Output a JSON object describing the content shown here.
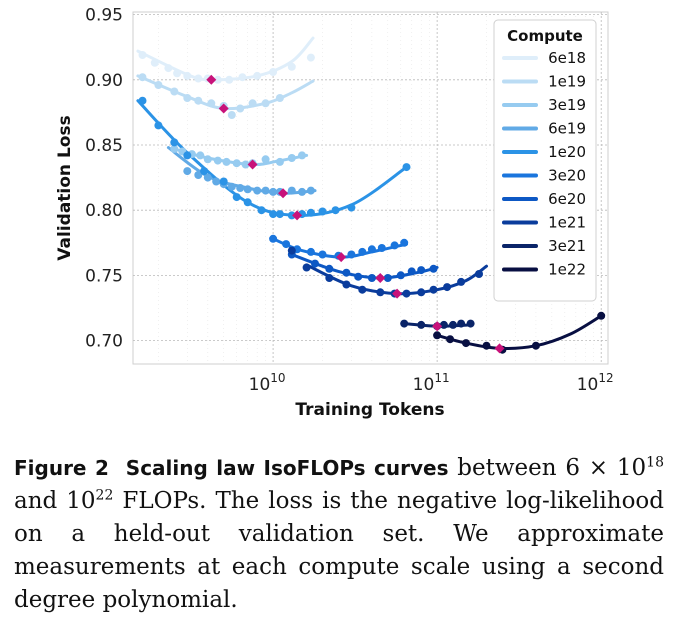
{
  "chart_data": {
    "type": "line",
    "x_scale": "log",
    "xlim": [
      1400000000.0,
      1100000000000.0
    ],
    "ylim": [
      0.682,
      0.952
    ],
    "xlabel": "Training Tokens",
    "ylabel": "Validation Loss",
    "x_ticks": [
      {
        "value": 10000000000.0,
        "base": "10",
        "exp": "10"
      },
      {
        "value": 100000000000.0,
        "base": "10",
        "exp": "11"
      },
      {
        "value": 1000000000000.0,
        "base": "10",
        "exp": "12"
      }
    ],
    "y_ticks": [
      "0.70",
      "0.75",
      "0.80",
      "0.85",
      "0.90",
      "0.95"
    ],
    "y_tick_values": [
      0.7,
      0.75,
      0.8,
      0.85,
      0.9,
      0.95
    ],
    "grid": true,
    "legend": {
      "title": "Compute",
      "position": "top-right"
    },
    "minimum_marker_color": "#c8127a",
    "series": [
      {
        "name": "6e18",
        "color": "#dfeefa",
        "points": [
          [
            1600000000.0,
            0.919
          ],
          [
            1900000000.0,
            0.913
          ],
          [
            2300000000.0,
            0.909
          ],
          [
            2600000000.0,
            0.905
          ],
          [
            3000000000.0,
            0.903
          ],
          [
            3500000000.0,
            0.901
          ],
          [
            4000000000.0,
            0.901
          ],
          [
            4600000000.0,
            0.9
          ],
          [
            5400000000.0,
            0.9
          ],
          [
            6500000000.0,
            0.902
          ],
          [
            8000000000.0,
            0.903
          ],
          [
            10000000000.0,
            0.906
          ],
          [
            13000000000.0,
            0.91
          ],
          [
            17000000000.0,
            0.917
          ]
        ],
        "fit": [
          [
            1500000000.0,
            0.922
          ],
          [
            3000000000.0,
            0.904
          ],
          [
            4200000000.0,
            0.9
          ],
          [
            8000000000.0,
            0.903
          ],
          [
            13000000000.0,
            0.914
          ],
          [
            17500000000.0,
            0.932
          ]
        ],
        "min": [
          4200000000.0,
          0.9
        ]
      },
      {
        "name": "1e19",
        "color": "#bbdcf4",
        "points": [
          [
            1600000000.0,
            0.902
          ],
          [
            2000000000.0,
            0.896
          ],
          [
            2500000000.0,
            0.891
          ],
          [
            3000000000.0,
            0.886
          ],
          [
            3500000000.0,
            0.884
          ],
          [
            4200000000.0,
            0.882
          ],
          [
            5000000000.0,
            0.88
          ],
          [
            5600000000.0,
            0.873
          ],
          [
            6300000000.0,
            0.878
          ],
          [
            7500000000.0,
            0.882
          ],
          [
            9000000000.0,
            0.882
          ],
          [
            11000000000.0,
            0.886
          ]
        ],
        "fit": [
          [
            1500000000.0,
            0.903
          ],
          [
            3000000000.0,
            0.887
          ],
          [
            5000000000.0,
            0.878
          ],
          [
            9000000000.0,
            0.882
          ],
          [
            13000000000.0,
            0.89
          ],
          [
            17500000000.0,
            0.899
          ]
        ],
        "min": [
          5000000000.0,
          0.878
        ]
      },
      {
        "name": "3e19",
        "color": "#96cbf0",
        "points": [
          [
            2500000000.0,
            0.847
          ],
          [
            2800000000.0,
            0.845
          ],
          [
            3200000000.0,
            0.843
          ],
          [
            3600000000.0,
            0.842
          ],
          [
            4000000000.0,
            0.839
          ],
          [
            4600000000.0,
            0.838
          ],
          [
            5200000000.0,
            0.837
          ],
          [
            6000000000.0,
            0.836
          ],
          [
            6800000000.0,
            0.835
          ],
          [
            7500000000.0,
            0.836
          ],
          [
            9000000000.0,
            0.839
          ],
          [
            11000000000.0,
            0.837
          ],
          [
            13000000000.0,
            0.84
          ],
          [
            15000000000.0,
            0.842
          ]
        ],
        "fit": [
          [
            2500000000.0,
            0.847
          ],
          [
            4000000000.0,
            0.84
          ],
          [
            7500000000.0,
            0.835
          ],
          [
            11000000000.0,
            0.838
          ],
          [
            16000000000.0,
            0.842
          ]
        ],
        "min": [
          7500000000.0,
          0.835
        ]
      },
      {
        "name": "6e19",
        "color": "#61aae6",
        "points": [
          [
            3000000000.0,
            0.83
          ],
          [
            3500000000.0,
            0.827
          ],
          [
            4000000000.0,
            0.825
          ],
          [
            4500000000.0,
            0.822
          ],
          [
            5000000000.0,
            0.82
          ],
          [
            5600000000.0,
            0.818
          ],
          [
            6300000000.0,
            0.817
          ],
          [
            7000000000.0,
            0.816
          ],
          [
            8000000000.0,
            0.815
          ],
          [
            9000000000.0,
            0.815
          ],
          [
            10000000000.0,
            0.814
          ],
          [
            11000000000.0,
            0.814
          ],
          [
            13000000000.0,
            0.815
          ],
          [
            15000000000.0,
            0.814
          ],
          [
            17000000000.0,
            0.815
          ]
        ],
        "fit": [
          [
            2300000000.0,
            0.848
          ],
          [
            4000000000.0,
            0.826
          ],
          [
            7000000000.0,
            0.817
          ],
          [
            11500000000.0,
            0.813
          ],
          [
            18000000000.0,
            0.815
          ]
        ],
        "min": [
          11500000000.0,
          0.813
        ]
      },
      {
        "name": "1e20",
        "color": "#2b93e6",
        "points": [
          [
            1600000000.0,
            0.884
          ],
          [
            2000000000.0,
            0.865
          ],
          [
            2500000000.0,
            0.852
          ],
          [
            3000000000.0,
            0.842
          ],
          [
            3800000000.0,
            0.83
          ],
          [
            5000000000.0,
            0.822
          ],
          [
            6000000000.0,
            0.81
          ],
          [
            7000000000.0,
            0.806
          ],
          [
            8500000000.0,
            0.8
          ],
          [
            10000000000.0,
            0.797
          ],
          [
            11000000000.0,
            0.797
          ],
          [
            13000000000.0,
            0.796
          ],
          [
            15000000000.0,
            0.797
          ],
          [
            17000000000.0,
            0.798
          ],
          [
            20000000000.0,
            0.799
          ],
          [
            24000000000.0,
            0.8
          ],
          [
            30000000000.0,
            0.802
          ],
          [
            65000000000.0,
            0.833
          ]
        ],
        "fit": [
          [
            1500000000.0,
            0.884
          ],
          [
            3000000000.0,
            0.844
          ],
          [
            7000000000.0,
            0.806
          ],
          [
            14000000000.0,
            0.796
          ],
          [
            30000000000.0,
            0.804
          ],
          [
            65000000000.0,
            0.833
          ]
        ],
        "min": [
          14000000000.0,
          0.796
        ]
      },
      {
        "name": "3e20",
        "color": "#1a75dd",
        "points": [
          [
            10000000000.0,
            0.778
          ],
          [
            12000000000.0,
            0.774
          ],
          [
            14000000000.0,
            0.77
          ],
          [
            17000000000.0,
            0.768
          ],
          [
            20000000000.0,
            0.766
          ],
          [
            25000000000.0,
            0.765
          ],
          [
            30000000000.0,
            0.766
          ],
          [
            35000000000.0,
            0.768
          ],
          [
            40000000000.0,
            0.77
          ],
          [
            46000000000.0,
            0.771
          ],
          [
            55000000000.0,
            0.773
          ],
          [
            63000000000.0,
            0.775
          ]
        ],
        "fit": [
          [
            10000000000.0,
            0.778
          ],
          [
            15000000000.0,
            0.769
          ],
          [
            26000000000.0,
            0.764
          ],
          [
            40000000000.0,
            0.768
          ],
          [
            65000000000.0,
            0.774
          ]
        ],
        "min": [
          26000000000.0,
          0.764
        ]
      },
      {
        "name": "6e20",
        "color": "#0d58c4",
        "points": [
          [
            13000000000.0,
            0.766
          ],
          [
            18000000000.0,
            0.759
          ],
          [
            22000000000.0,
            0.755
          ],
          [
            28000000000.0,
            0.752
          ],
          [
            33000000000.0,
            0.749
          ],
          [
            40000000000.0,
            0.748
          ],
          [
            50000000000.0,
            0.748
          ],
          [
            60000000000.0,
            0.75
          ],
          [
            70000000000.0,
            0.753
          ],
          [
            80000000000.0,
            0.754
          ],
          [
            95000000000.0,
            0.755
          ]
        ],
        "fit": [
          [
            13000000000.0,
            0.766
          ],
          [
            25000000000.0,
            0.753
          ],
          [
            45000000000.0,
            0.748
          ],
          [
            75000000000.0,
            0.752
          ],
          [
            100000000000.0,
            0.756
          ]
        ],
        "min": [
          45000000000.0,
          0.748
        ]
      },
      {
        "name": "1e21",
        "color": "#0a3c9c",
        "points": [
          [
            13000000000.0,
            0.769
          ],
          [
            16000000000.0,
            0.756
          ],
          [
            22000000000.0,
            0.748
          ],
          [
            28000000000.0,
            0.743
          ],
          [
            35000000000.0,
            0.739
          ],
          [
            45000000000.0,
            0.737
          ],
          [
            55000000000.0,
            0.736
          ],
          [
            65000000000.0,
            0.736
          ],
          [
            80000000000.0,
            0.737
          ],
          [
            95000000000.0,
            0.739
          ],
          [
            115000000000.0,
            0.741
          ],
          [
            140000000000.0,
            0.745
          ],
          [
            180000000000.0,
            0.751
          ]
        ],
        "fit": [
          [
            16000000000.0,
            0.758
          ],
          [
            30000000000.0,
            0.742
          ],
          [
            57000000000.0,
            0.736
          ],
          [
            100000000000.0,
            0.739
          ],
          [
            150000000000.0,
            0.746
          ],
          [
            200000000000.0,
            0.757
          ]
        ],
        "min": [
          57000000000.0,
          0.736
        ]
      },
      {
        "name": "3e21",
        "color": "#0a2468",
        "points": [
          [
            63000000000.0,
            0.713
          ],
          [
            80000000000.0,
            0.712
          ],
          [
            100000000000.0,
            0.711
          ],
          [
            110000000000.0,
            0.712
          ],
          [
            125000000000.0,
            0.712
          ],
          [
            140000000000.0,
            0.713
          ],
          [
            160000000000.0,
            0.713
          ]
        ],
        "fit": [
          [
            63000000000.0,
            0.713
          ],
          [
            100000000000.0,
            0.711
          ],
          [
            160000000000.0,
            0.712
          ]
        ],
        "min": [
          100000000000.0,
          0.711
        ]
      },
      {
        "name": "1e22",
        "color": "#080f42",
        "points": [
          [
            100000000000.0,
            0.704
          ],
          [
            120000000000.0,
            0.701
          ],
          [
            150000000000.0,
            0.698
          ],
          [
            200000000000.0,
            0.696
          ],
          [
            250000000000.0,
            0.693
          ],
          [
            400000000000.0,
            0.696
          ],
          [
            1000000000000.0,
            0.719
          ]
        ],
        "fit": [
          [
            100000000000.0,
            0.704
          ],
          [
            150000000000.0,
            0.698
          ],
          [
            240000000000.0,
            0.694
          ],
          [
            400000000000.0,
            0.696
          ],
          [
            650000000000.0,
            0.705
          ],
          [
            1000000000000.0,
            0.719
          ]
        ],
        "min": [
          240000000000.0,
          0.694
        ]
      }
    ]
  },
  "caption": {
    "label": "Figure 2",
    "title": "Scaling law IsoFLOPs curves",
    "body_1": " between 6 × 10",
    "exp_1": "18",
    "body_2": " and 10",
    "exp_2": "22",
    "body_3": " FLOPs.  The loss is the negative log-likelihood on a held-out validation set. We approximate measurements at each compute scale using a second degree polynomial."
  }
}
